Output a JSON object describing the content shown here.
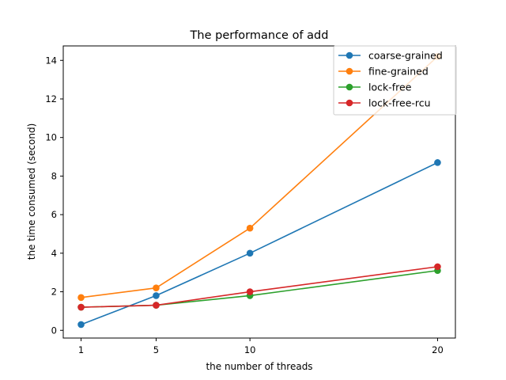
{
  "chart_data": {
    "type": "line",
    "title": "The performance of add",
    "xlabel": "the number of threads",
    "ylabel": "the time consumed (second)",
    "x": [
      1,
      5,
      10,
      20
    ],
    "xticks": [
      1,
      5,
      10,
      20
    ],
    "xtick_labels": [
      "1",
      "5",
      "10",
      "20"
    ],
    "yticks": [
      0,
      2,
      4,
      6,
      8,
      10,
      12,
      14
    ],
    "ytick_labels": [
      "0",
      "2",
      "4",
      "6",
      "8",
      "10",
      "12",
      "14"
    ],
    "xlim": [
      0.05,
      20.95
    ],
    "ylim": [
      -0.4,
      14.75
    ],
    "grid": false,
    "legend_position": "top-right",
    "series": [
      {
        "name": "coarse-grained",
        "color": "#1f77b4",
        "values": [
          0.3,
          1.8,
          4.0,
          8.7
        ]
      },
      {
        "name": "fine-grained",
        "color": "#ff7f0e",
        "values": [
          1.7,
          2.2,
          5.3,
          14.2
        ]
      },
      {
        "name": "lock-free",
        "color": "#2ca02c",
        "values": [
          1.2,
          1.3,
          1.8,
          3.1
        ]
      },
      {
        "name": "lock-free-rcu",
        "color": "#d62728",
        "values": [
          1.2,
          1.3,
          2.0,
          3.3
        ]
      }
    ]
  }
}
